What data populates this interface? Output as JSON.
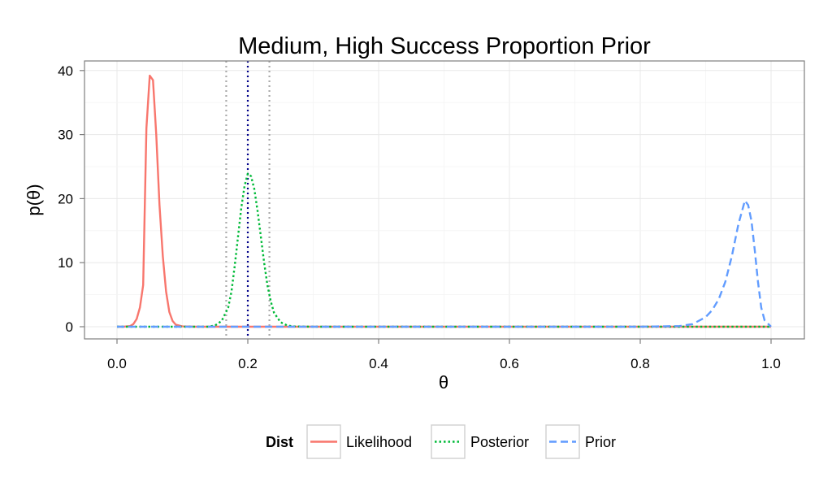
{
  "chart_data": {
    "type": "line",
    "title": "Medium, High Success Proportion Prior",
    "xlabel": "θ",
    "ylabel": "p(θ)",
    "xlim": [
      0,
      1
    ],
    "ylim": [
      -2,
      41
    ],
    "x_ticks": [
      0.0,
      0.2,
      0.4,
      0.6,
      0.8,
      1.0
    ],
    "x_tick_labels": [
      "0.0",
      "0.2",
      "0.4",
      "0.6",
      "0.8",
      "1.0"
    ],
    "y_ticks": [
      0,
      10,
      20,
      30,
      40
    ],
    "y_tick_labels": [
      "0",
      "10",
      "20",
      "30",
      "40"
    ],
    "grid": true,
    "legend": {
      "title": "Dist",
      "position": "bottom"
    },
    "series": [
      {
        "name": "Likelihood",
        "color": "#f8766d",
        "dash": "solid",
        "points": [
          [
            0.0,
            0
          ],
          [
            0.01,
            0
          ],
          [
            0.02,
            0.1
          ],
          [
            0.025,
            0.4
          ],
          [
            0.03,
            1.2
          ],
          [
            0.035,
            3.0
          ],
          [
            0.04,
            6.5
          ],
          [
            0.045,
            31.0
          ],
          [
            0.05,
            39.2
          ],
          [
            0.055,
            38.5
          ],
          [
            0.06,
            30.0
          ],
          [
            0.065,
            19.0
          ],
          [
            0.07,
            11.0
          ],
          [
            0.075,
            5.5
          ],
          [
            0.08,
            2.3
          ],
          [
            0.085,
            0.9
          ],
          [
            0.09,
            0.3
          ],
          [
            0.1,
            0.05
          ],
          [
            0.12,
            0
          ],
          [
            0.2,
            0
          ],
          [
            0.4,
            0
          ],
          [
            0.6,
            0
          ],
          [
            0.8,
            0
          ],
          [
            1.0,
            0
          ]
        ]
      },
      {
        "name": "Posterior",
        "color": "#00ba38",
        "dash": "dotted",
        "points": [
          [
            0.0,
            0
          ],
          [
            0.14,
            0
          ],
          [
            0.15,
            0.2
          ],
          [
            0.16,
            0.9
          ],
          [
            0.17,
            3.0
          ],
          [
            0.175,
            5.5
          ],
          [
            0.18,
            9.5
          ],
          [
            0.185,
            14.0
          ],
          [
            0.19,
            18.5
          ],
          [
            0.195,
            22.0
          ],
          [
            0.2,
            23.9
          ],
          [
            0.205,
            23.5
          ],
          [
            0.21,
            21.5
          ],
          [
            0.215,
            18.0
          ],
          [
            0.22,
            14.0
          ],
          [
            0.225,
            10.0
          ],
          [
            0.23,
            6.5
          ],
          [
            0.235,
            4.0
          ],
          [
            0.24,
            2.2
          ],
          [
            0.25,
            0.7
          ],
          [
            0.26,
            0.2
          ],
          [
            0.27,
            0.05
          ],
          [
            0.3,
            0
          ],
          [
            0.6,
            0
          ],
          [
            1.0,
            0
          ]
        ]
      },
      {
        "name": "Prior",
        "color": "#619cff",
        "dash": "dashed",
        "points": [
          [
            0.0,
            0
          ],
          [
            0.5,
            0
          ],
          [
            0.8,
            0
          ],
          [
            0.86,
            0.1
          ],
          [
            0.88,
            0.4
          ],
          [
            0.9,
            1.5
          ],
          [
            0.91,
            2.6
          ],
          [
            0.92,
            4.3
          ],
          [
            0.93,
            7.0
          ],
          [
            0.94,
            11.0
          ],
          [
            0.95,
            16.0
          ],
          [
            0.96,
            19.7
          ],
          [
            0.965,
            19.0
          ],
          [
            0.97,
            16.5
          ],
          [
            0.975,
            12.0
          ],
          [
            0.98,
            7.0
          ],
          [
            0.985,
            3.0
          ],
          [
            0.99,
            1.0
          ],
          [
            1.0,
            0
          ]
        ]
      }
    ],
    "vlines": [
      {
        "x": 0.167,
        "color": "#aaaaaa",
        "style": "dotted"
      },
      {
        "x": 0.2,
        "color": "#00008b",
        "style": "dotted"
      },
      {
        "x": 0.233,
        "color": "#aaaaaa",
        "style": "dotted"
      }
    ]
  }
}
